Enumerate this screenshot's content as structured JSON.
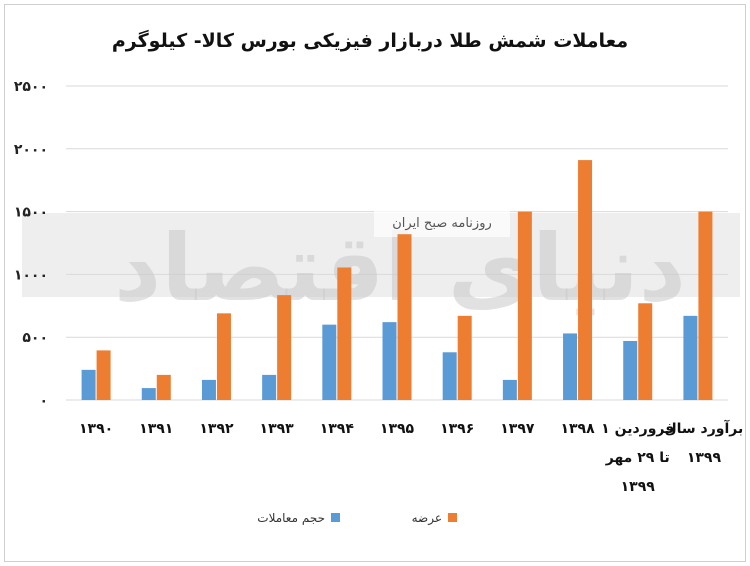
{
  "watermark": {
    "main": "دنیای اقتصاد",
    "sub": "روزنامه صبح ایران"
  },
  "chart_data": {
    "type": "bar",
    "title": "معاملات شمش طلا دربازار فیزیکی بورس کالا- کیلوگرم",
    "categories": [
      [
        "۱۳۹۰"
      ],
      [
        "۱۳۹۱"
      ],
      [
        "۱۳۹۲"
      ],
      [
        "۱۳۹۳"
      ],
      [
        "۱۳۹۴"
      ],
      [
        "۱۳۹۵"
      ],
      [
        "۱۳۹۶"
      ],
      [
        "۱۳۹۷"
      ],
      [
        "۱۳۹۸"
      ],
      [
        "۱ فروردین",
        "تا ۲۹ مهر",
        "۱۳۹۹"
      ],
      [
        "برآورد سال",
        "۱۳۹۹"
      ]
    ],
    "series": [
      {
        "name": "حجم معاملات",
        "color": "#5B9BD5",
        "values": [
          240,
          95,
          160,
          200,
          600,
          620,
          380,
          160,
          530,
          470,
          670
        ]
      },
      {
        "name": "عرضه",
        "color": "#ED7D31",
        "values": [
          395,
          200,
          690,
          835,
          1055,
          1320,
          670,
          1500,
          1910,
          770,
          1500
        ]
      }
    ],
    "ylim": [
      0,
      2500
    ],
    "yticks": [
      0,
      500,
      1000,
      1500,
      2000,
      2500
    ],
    "ytick_labels": [
      "۰",
      "۵۰۰",
      "۱۰۰۰",
      "۱۵۰۰",
      "۲۰۰۰",
      "۲۵۰۰"
    ],
    "grid": true,
    "legend": "bottom"
  }
}
